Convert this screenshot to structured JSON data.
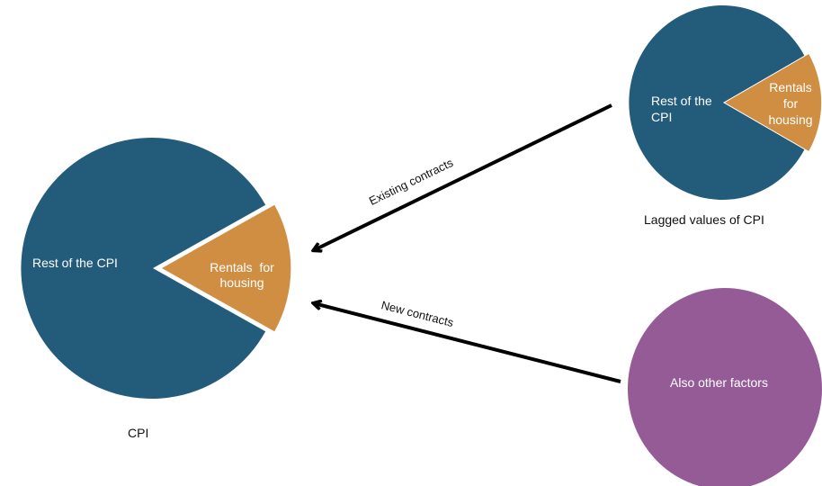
{
  "colors": {
    "pie_main": "#235B7A",
    "pie_slice": "#D08E42",
    "other_factors": "#955B97",
    "arrow": "#000000",
    "background": "#FFFFFF"
  },
  "cpi_pie": {
    "main_label": "Rest of the CPI",
    "slice_label_line1": "Rentals  for",
    "slice_label_line2": "housing",
    "caption": "CPI"
  },
  "lagged_pie": {
    "main_label_line1": "Rest of the",
    "main_label_line2": "CPI",
    "slice_label_line1": "Rentals",
    "slice_label_line2": "for",
    "slice_label_line3": "housing",
    "caption": "Lagged values of CPI"
  },
  "other_factors": {
    "label": "Also other factors"
  },
  "arrows": {
    "existing": "Existing contracts",
    "new": "New contracts"
  }
}
